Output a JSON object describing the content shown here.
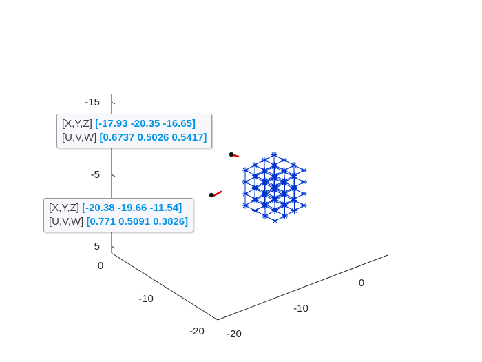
{
  "chart_data": {
    "type": "quiver3",
    "title": "",
    "xlabel": "",
    "ylabel": "",
    "zlabel": "",
    "axes": {
      "x": {
        "ticks": [
          "0",
          "-10",
          "-20"
        ]
      },
      "y": {
        "ticks": [
          "0",
          "-10",
          "-20"
        ]
      },
      "z": {
        "ticks": [
          "-15",
          "-5",
          "5"
        ],
        "direction": "reverse"
      }
    },
    "grid": "off",
    "series": [
      {
        "marker": "asterisk",
        "color": "#0033cc",
        "grid_points": 4,
        "description_values": "4x4x4 lattice of vector origins"
      }
    ],
    "datatips": [
      {
        "xyz_label": "[X,Y,Z]",
        "xyz_value": "[-17.93 -20.35 -16.65]",
        "uvw_label": "[U,V,W]",
        "uvw_value": "[0.6737 0.5026 0.5417]"
      },
      {
        "xyz_label": "[X,Y,Z]",
        "xyz_value": "[-20.38 -19.66 -11.54]",
        "uvw_label": "[U,V,W]",
        "uvw_value": "[0.771 0.5091 0.3826]"
      }
    ],
    "colors": {
      "lattice": "#0033cc",
      "vector": "#e00000",
      "axis": "#262626"
    }
  }
}
